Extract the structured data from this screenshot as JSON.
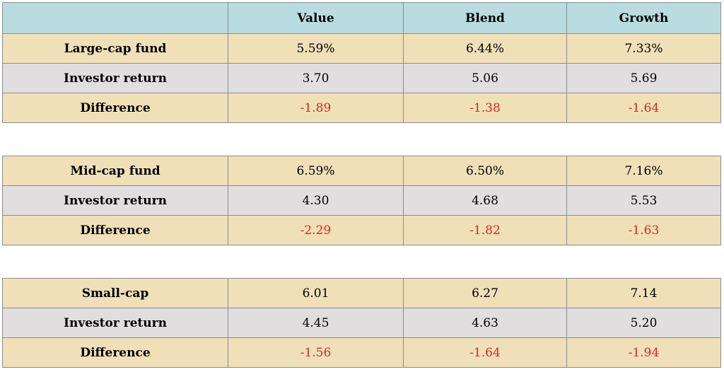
{
  "header": {
    "corner": "",
    "columns": [
      "Value",
      "Blend",
      "Growth"
    ]
  },
  "groups": [
    {
      "rows": [
        {
          "label": "Large-cap fund",
          "values": [
            "5.59%",
            "6.44%",
            "7.33%"
          ]
        },
        {
          "label": "Investor return",
          "values": [
            "3.70",
            "5.06",
            "5.69"
          ]
        },
        {
          "label": "Difference",
          "values": [
            "-1.89",
            "-1.38",
            "-1.64"
          ]
        }
      ]
    },
    {
      "rows": [
        {
          "label": "Mid-cap fund",
          "values": [
            "6.59%",
            "6.50%",
            "7.16%"
          ]
        },
        {
          "label": "Investor return",
          "values": [
            "4.30",
            "4.68",
            "5.53"
          ]
        },
        {
          "label": "Difference",
          "values": [
            "-2.29",
            "-1.82",
            "-1.63"
          ]
        }
      ]
    },
    {
      "rows": [
        {
          "label": "Small-cap",
          "values": [
            "6.01",
            "6.27",
            "7.14"
          ]
        },
        {
          "label": "Investor return",
          "values": [
            "4.45",
            "4.63",
            "5.20"
          ]
        },
        {
          "label": "Difference",
          "values": [
            "-1.56",
            "-1.64",
            "-1.94"
          ]
        }
      ]
    }
  ],
  "colors": {
    "header_bg": "#b8dcdf",
    "beige_bg": "#f0e0b8",
    "gray_bg": "#e1dedf",
    "negative_text": "#d4262a"
  }
}
